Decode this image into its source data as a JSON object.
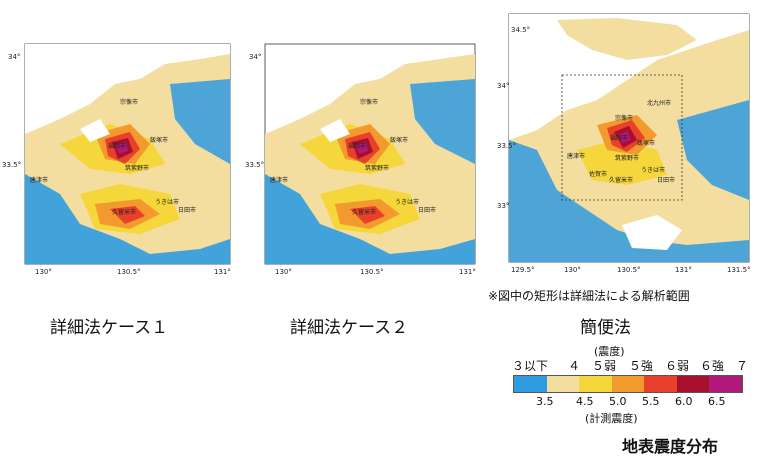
{
  "maps": [
    {
      "id": "map1",
      "caption": "詳細法ケース１",
      "x_ticks": [
        "130°",
        "130.5°",
        "131°"
      ],
      "y_ticks": [
        "34°",
        "33.5°"
      ],
      "cities": [
        "宗像市",
        "飯塚市",
        "福岡市",
        "筑紫野市",
        "唐津市",
        "久留米市",
        "うきは市",
        "日田市"
      ]
    },
    {
      "id": "map2",
      "caption": "詳細法ケース２",
      "x_ticks": [
        "130°",
        "130.5°",
        "131°"
      ],
      "y_ticks": [
        "34°",
        "33.5°"
      ],
      "cities": [
        "宗像市",
        "飯塚市",
        "福岡市",
        "筑紫野市",
        "唐津市",
        "久留米市",
        "うきは市",
        "日田市"
      ]
    },
    {
      "id": "map3",
      "caption": "簡便法",
      "x_ticks": [
        "129.5°",
        "130°",
        "130.5°",
        "131°",
        "131.5°"
      ],
      "y_ticks": [
        "34.5°",
        "34°",
        "33.5°",
        "33°"
      ],
      "cities": [
        "北九州市",
        "宗像市",
        "福岡市",
        "飯塚市",
        "唐津市",
        "筑紫野市",
        "うきは市",
        "佐賀市",
        "久留米市",
        "日田市"
      ]
    }
  ],
  "note": "※図中の矩形は詳細法による解析範囲",
  "legend": {
    "title": "(震度)",
    "top_labels": [
      "３以下",
      "４",
      "５弱",
      "５強",
      "６弱",
      "６強",
      "７"
    ],
    "bottom_labels": [
      "3.5",
      "4.5",
      "5.0",
      "5.5",
      "6.0",
      "6.5"
    ],
    "subtitle": "(計測震度)",
    "colors": [
      "#2f9be0",
      "#f3dea0",
      "#f5d63b",
      "#f29a2d",
      "#e8402a",
      "#a5102c",
      "#b0187a"
    ]
  },
  "figure_title": "地表震度分布"
}
